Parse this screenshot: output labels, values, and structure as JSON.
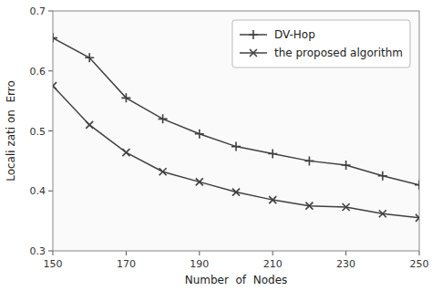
{
  "chart_data": {
    "type": "line",
    "x": [
      150,
      160,
      170,
      180,
      190,
      200,
      210,
      220,
      230,
      240,
      250
    ],
    "xlabel": "Number  of  Nodes",
    "ylabel": "Locali zati on  Erro",
    "xlim": [
      150,
      250
    ],
    "ylim": [
      0.3,
      0.7
    ],
    "xticks": [
      150,
      170,
      190,
      210,
      230,
      250
    ],
    "yticks": [
      0.3,
      0.4,
      0.5,
      0.6,
      0.7
    ],
    "grid": false,
    "legend": "upper right",
    "series": [
      {
        "name": "DV-Hop",
        "color": "#404040",
        "marker": "plus",
        "values": [
          0.655,
          0.622,
          0.555,
          0.52,
          0.495,
          0.474,
          0.462,
          0.45,
          0.443,
          0.425,
          0.41
        ]
      },
      {
        "name": "the proposed algorithm",
        "color": "#404040",
        "marker": "cross",
        "values": [
          0.575,
          0.51,
          0.464,
          0.432,
          0.415,
          0.398,
          0.385,
          0.375,
          0.373,
          0.362,
          0.355
        ]
      }
    ]
  }
}
